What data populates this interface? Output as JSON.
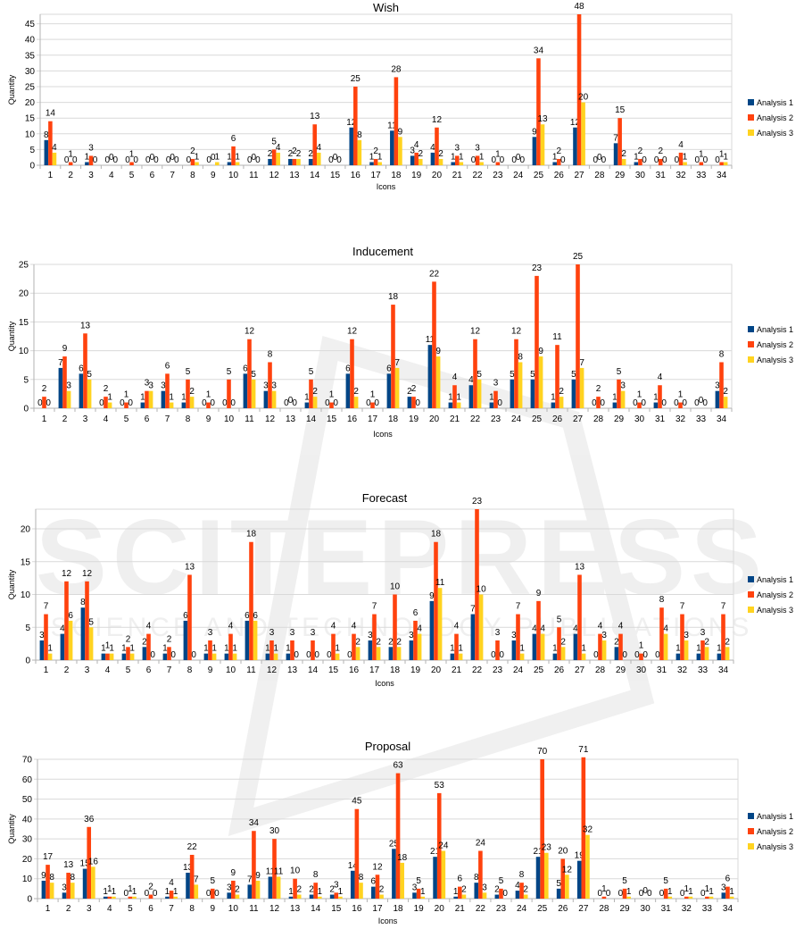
{
  "watermark": {
    "logo_text": "SCITEPRESS",
    "tagline": "SCIENCE AND TECHNOLOGY PUBLICATIONS"
  },
  "colors": {
    "series": [
      "#004586",
      "#ff420e",
      "#ffd320"
    ],
    "grid": "#d9d9d9",
    "axis": "#b3b3b3"
  },
  "chart_data": [
    {
      "type": "bar",
      "title": "Wish",
      "xlabel": "Icons",
      "ylabel": "Quantity",
      "ylim": [
        0,
        48
      ],
      "yticks": [
        0,
        5,
        10,
        15,
        20,
        25,
        30,
        35,
        40,
        45
      ],
      "grid": true,
      "legend": "right",
      "categories": [
        "1",
        "2",
        "3",
        "4",
        "5",
        "6",
        "7",
        "8",
        "9",
        "10",
        "11",
        "12",
        "13",
        "14",
        "15",
        "16",
        "17",
        "18",
        "19",
        "20",
        "21",
        "22",
        "23",
        "24",
        "25",
        "26",
        "27",
        "28",
        "29",
        "30",
        "31",
        "32",
        "33",
        "34"
      ],
      "series": [
        {
          "name": "Analysis 1",
          "values": [
            8,
            0,
            1,
            0,
            0,
            0,
            0,
            0,
            0,
            1,
            0,
            2,
            2,
            2,
            0,
            12,
            1,
            11,
            3,
            4,
            1,
            0,
            0,
            0,
            9,
            1,
            12,
            0,
            7,
            1,
            0,
            0,
            0,
            0
          ]
        },
        {
          "name": "Analysis 2",
          "values": [
            14,
            1,
            3,
            0,
            1,
            0,
            0,
            2,
            0,
            6,
            0,
            5,
            2,
            13,
            0,
            25,
            2,
            28,
            4,
            12,
            3,
            3,
            1,
            0,
            34,
            2,
            48,
            0,
            15,
            2,
            2,
            4,
            1,
            1
          ]
        },
        {
          "name": "Analysis 3",
          "values": [
            4,
            0,
            0,
            0,
            0,
            0,
            0,
            1,
            1,
            1,
            0,
            4,
            2,
            4,
            0,
            8,
            1,
            9,
            2,
            2,
            1,
            1,
            0,
            0,
            13,
            0,
            20,
            0,
            2,
            0,
            0,
            1,
            0,
            1
          ]
        }
      ]
    },
    {
      "type": "bar",
      "title": "Inducement",
      "xlabel": "Icons",
      "ylabel": "Quantity",
      "ylim": [
        0,
        25
      ],
      "yticks": [
        0,
        5,
        10,
        15,
        20,
        25
      ],
      "grid": true,
      "legend": "right",
      "categories": [
        "1",
        "2",
        "3",
        "4",
        "5",
        "6",
        "7",
        "8",
        "9",
        "10",
        "11",
        "12",
        "13",
        "14",
        "15",
        "16",
        "17",
        "18",
        "19",
        "20",
        "21",
        "22",
        "23",
        "24",
        "25",
        "26",
        "27",
        "28",
        "29",
        "30",
        "31",
        "32",
        "33",
        "34"
      ],
      "series": [
        {
          "name": "Analysis 1",
          "values": [
            0,
            7,
            6,
            0,
            0,
            1,
            3,
            1,
            0,
            0,
            6,
            3,
            0,
            1,
            0,
            6,
            0,
            6,
            2,
            11,
            1,
            4,
            1,
            5,
            5,
            1,
            5,
            0,
            1,
            0,
            1,
            0,
            0,
            3
          ]
        },
        {
          "name": "Analysis 2",
          "values": [
            2,
            9,
            13,
            2,
            1,
            3,
            6,
            5,
            1,
            5,
            12,
            8,
            0,
            5,
            1,
            12,
            1,
            18,
            2,
            22,
            4,
            12,
            3,
            12,
            23,
            11,
            25,
            2,
            5,
            1,
            4,
            1,
            0,
            8
          ]
        },
        {
          "name": "Analysis 3",
          "values": [
            0,
            3,
            5,
            1,
            0,
            3,
            1,
            2,
            0,
            0,
            5,
            3,
            0,
            2,
            0,
            2,
            0,
            7,
            0,
            9,
            1,
            5,
            0,
            8,
            9,
            2,
            7,
            0,
            3,
            0,
            0,
            0,
            0,
            2
          ]
        }
      ]
    },
    {
      "type": "bar",
      "title": "Forecast",
      "xlabel": "Icons",
      "ylabel": "Quantity",
      "ylim": [
        0,
        23
      ],
      "yticks": [
        0,
        5,
        10,
        15,
        20
      ],
      "grid": true,
      "legend": "right",
      "categories": [
        "1",
        "2",
        "3",
        "4",
        "5",
        "6",
        "7",
        "8",
        "9",
        "10",
        "11",
        "12",
        "13",
        "14",
        "15",
        "16",
        "17",
        "18",
        "19",
        "20",
        "21",
        "22",
        "23",
        "24",
        "25",
        "26",
        "27",
        "28",
        "29",
        "30",
        "31",
        "32",
        "33",
        "34"
      ],
      "series": [
        {
          "name": "Analysis 1",
          "values": [
            3,
            4,
            8,
            1,
            1,
            2,
            1,
            6,
            1,
            1,
            6,
            1,
            1,
            0,
            0,
            0,
            3,
            2,
            3,
            9,
            1,
            7,
            0,
            3,
            4,
            1,
            4,
            0,
            2,
            0,
            0,
            1,
            1,
            1
          ]
        },
        {
          "name": "Analysis 2",
          "values": [
            7,
            12,
            12,
            1,
            2,
            4,
            2,
            13,
            3,
            4,
            18,
            3,
            3,
            3,
            4,
            4,
            7,
            10,
            6,
            18,
            4,
            23,
            3,
            7,
            9,
            5,
            13,
            4,
            4,
            1,
            8,
            7,
            3,
            7
          ]
        },
        {
          "name": "Analysis 3",
          "values": [
            1,
            6,
            5,
            1,
            1,
            0,
            0,
            0,
            1,
            1,
            6,
            1,
            0,
            0,
            1,
            2,
            2,
            2,
            4,
            11,
            1,
            10,
            0,
            1,
            4,
            2,
            1,
            3,
            0,
            0,
            4,
            3,
            2,
            2
          ]
        }
      ]
    },
    {
      "type": "bar",
      "title": "Proposal",
      "xlabel": "Icons",
      "ylabel": "Quantity",
      "ylim": [
        0,
        70
      ],
      "yticks": [
        0,
        10,
        20,
        30,
        40,
        50,
        60,
        70
      ],
      "grid": true,
      "legend": "right",
      "categories": [
        "1",
        "2",
        "3",
        "4",
        "5",
        "6",
        "7",
        "8",
        "9",
        "10",
        "11",
        "12",
        "13",
        "14",
        "15",
        "16",
        "17",
        "18",
        "19",
        "20",
        "21",
        "22",
        "23",
        "24",
        "25",
        "26",
        "27",
        "28",
        "29",
        "30",
        "31",
        "32",
        "33",
        "34"
      ],
      "series": [
        {
          "name": "Analysis 1",
          "values": [
            9,
            3,
            15,
            1,
            0,
            0,
            1,
            13,
            0,
            3,
            7,
            11,
            1,
            2,
            2,
            14,
            6,
            25,
            3,
            21,
            1,
            8,
            2,
            4,
            21,
            5,
            19,
            0,
            0,
            0,
            0,
            0,
            0,
            3
          ]
        },
        {
          "name": "Analysis 2",
          "values": [
            17,
            13,
            36,
            1,
            1,
            2,
            4,
            22,
            5,
            9,
            34,
            30,
            10,
            8,
            3,
            45,
            12,
            63,
            5,
            53,
            6,
            24,
            5,
            8,
            70,
            20,
            71,
            1,
            5,
            0,
            5,
            1,
            1,
            6
          ]
        },
        {
          "name": "Analysis 3",
          "values": [
            8,
            8,
            16,
            1,
            1,
            0,
            1,
            7,
            0,
            2,
            9,
            11,
            2,
            1,
            1,
            8,
            2,
            18,
            1,
            24,
            2,
            3,
            0,
            2,
            23,
            12,
            32,
            0,
            1,
            0,
            1,
            1,
            1,
            1
          ]
        }
      ]
    }
  ]
}
